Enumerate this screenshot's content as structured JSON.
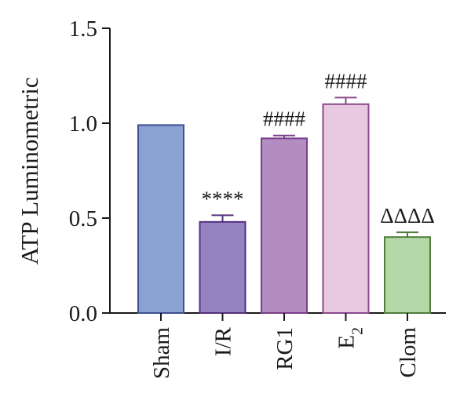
{
  "chart_data": {
    "type": "bar",
    "title": "",
    "xlabel": "",
    "ylabel": "ATP Luminometric",
    "ylim": [
      0,
      1.5
    ],
    "yticks": [
      "0.0",
      "0.5",
      "1.0",
      "1.5"
    ],
    "ytick_values": [
      0,
      0.5,
      1.0,
      1.5
    ],
    "grid": false,
    "legend": "none",
    "categories": [
      {
        "label": "Sham",
        "sub": ""
      },
      {
        "label": "I/R",
        "sub": ""
      },
      {
        "label": "RG1",
        "sub": ""
      },
      {
        "label": "E",
        "sub": "2"
      },
      {
        "label": "Clom",
        "sub": ""
      }
    ],
    "values": [
      0.99,
      0.48,
      0.92,
      1.1,
      0.4
    ],
    "errors": [
      0.0,
      0.035,
      0.015,
      0.035,
      0.025
    ],
    "annotations": [
      "",
      "****",
      "####",
      "####",
      "ΔΔΔΔ"
    ],
    "fill_colors": [
      "#8aa1d1",
      "#9483c0",
      "#b38cc2",
      "#e9c8e2",
      "#b5d8a8"
    ],
    "edge_colors": [
      "#3d4f92",
      "#55307c",
      "#7a3f8a",
      "#8a4a8e",
      "#4f7d3c"
    ],
    "axis_color": "#1a1a1a"
  }
}
